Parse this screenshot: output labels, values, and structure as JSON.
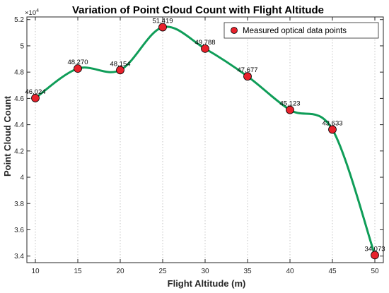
{
  "chart_data": {
    "type": "line",
    "title": "Variation of Point Cloud Count with Flight Altitude",
    "xlabel": "Flight Altitude (m)",
    "ylabel": "Point Cloud Count",
    "y_scale_exponent": {
      "base": "×10",
      "power": "4"
    },
    "xlim": [
      9,
      51
    ],
    "ylim": [
      3.35,
      5.22
    ],
    "x_ticks": [
      10,
      15,
      20,
      25,
      30,
      35,
      40,
      45,
      50
    ],
    "x_tick_labels": [
      "10",
      "15",
      "20",
      "25",
      "30",
      "35",
      "40",
      "45",
      "50"
    ],
    "y_ticks": [
      3.4,
      3.6,
      3.8,
      4.0,
      4.2,
      4.4,
      4.6,
      4.8,
      5.0,
      5.2
    ],
    "y_tick_labels": [
      "3.4",
      "3.6",
      "3.8",
      "4",
      "4.2",
      "4.4",
      "4.6",
      "4.8",
      "5",
      "5.2"
    ],
    "grid": {
      "x": true,
      "y": false
    },
    "legend": {
      "position": "top-right",
      "entries": [
        "Measured optical data points"
      ]
    },
    "series": [
      {
        "name": "Measured optical data points",
        "x": [
          10,
          15,
          20,
          25,
          30,
          35,
          40,
          45,
          50
        ],
        "y": [
          46024,
          48270,
          48154,
          51419,
          49788,
          47677,
          45123,
          43633,
          34073
        ],
        "labels": [
          "46,024",
          "48,270",
          "48,154",
          "51,419",
          "49,788",
          "47,677",
          "45,123",
          "43,633",
          "34,073"
        ],
        "line_color": "#0f9d58",
        "marker_color": "#e8212b"
      }
    ]
  }
}
